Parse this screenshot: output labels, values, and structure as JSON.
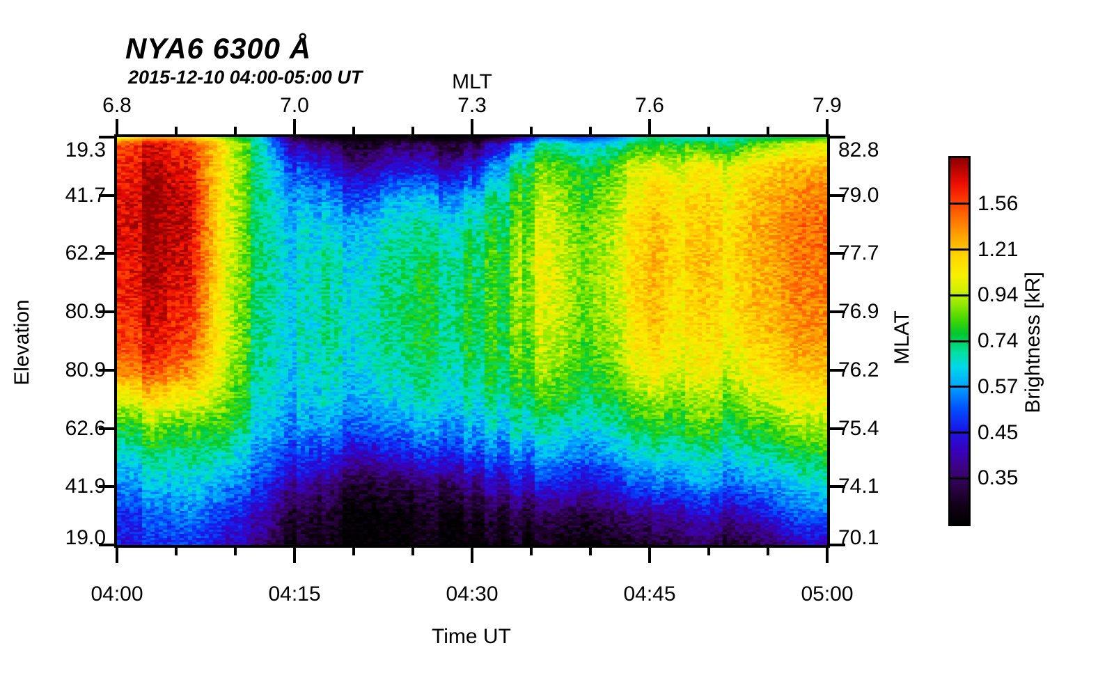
{
  "title": {
    "text": "NYA6 6300 Å",
    "subtitle": "2015-12-10 04:00-05:00 UT"
  },
  "chart_data": {
    "type": "heatmap",
    "title": "NYA6 6300 Å",
    "subtitle": "2015-12-10 04:00-05:00 UT",
    "x_bottom": {
      "label": "Time UT",
      "tick_labels": [
        "04:00",
        "04:15",
        "04:30",
        "04:45",
        "05:00"
      ],
      "minor_ticks_per_interval": 2
    },
    "x_top": {
      "label": "MLT",
      "tick_labels": [
        "6.8",
        "7.0",
        "7.3",
        "7.6",
        "7.9"
      ],
      "minor_ticks_per_interval": 2
    },
    "y_left": {
      "label": "Elevation",
      "tick_labels": [
        "19.3",
        "41.7",
        "62.2",
        "80.9",
        "80.9",
        "62.6",
        "41.9",
        "19.0"
      ]
    },
    "y_right": {
      "label": "MLAT",
      "tick_labels": [
        "82.8",
        "79.0",
        "77.7",
        "76.9",
        "76.2",
        "75.4",
        "74.1",
        "70.1"
      ]
    },
    "colorbar": {
      "label": "Brightness [kR]",
      "tick_labels": [
        "1.56",
        "1.21",
        "0.94",
        "0.74",
        "0.57",
        "0.45",
        "0.35"
      ],
      "segments": 8
    },
    "grid": {
      "description": "Normalized brightness 0-1 (0=black/min, 1=dark red/max), 15 elevation rows (top 19.3 N to bottom 19.0 S) x 21 time samples (04:00 to 05:00 every 3 min)",
      "cols": 21,
      "rows": 15,
      "time_samples": [
        "04:00",
        "04:03",
        "04:06",
        "04:09",
        "04:12",
        "04:15",
        "04:18",
        "04:21",
        "04:24",
        "04:27",
        "04:30",
        "04:33",
        "04:36",
        "04:39",
        "04:42",
        "04:45",
        "04:48",
        "04:51",
        "04:54",
        "04:57",
        "05:00"
      ],
      "values": [
        [
          0.88,
          0.92,
          0.88,
          0.7,
          0.48,
          0.15,
          0.08,
          0.05,
          0.1,
          0.06,
          0.06,
          0.2,
          0.45,
          0.4,
          0.42,
          0.5,
          0.48,
          0.45,
          0.55,
          0.62,
          0.66
        ],
        [
          0.93,
          0.96,
          0.94,
          0.69,
          0.5,
          0.3,
          0.22,
          0.18,
          0.25,
          0.2,
          0.24,
          0.42,
          0.6,
          0.54,
          0.58,
          0.68,
          0.64,
          0.66,
          0.74,
          0.78,
          0.8
        ],
        [
          0.95,
          0.98,
          0.97,
          0.68,
          0.5,
          0.38,
          0.33,
          0.32,
          0.4,
          0.36,
          0.4,
          0.5,
          0.64,
          0.58,
          0.62,
          0.73,
          0.68,
          0.7,
          0.78,
          0.82,
          0.85
        ],
        [
          0.96,
          0.98,
          0.97,
          0.68,
          0.5,
          0.41,
          0.4,
          0.42,
          0.47,
          0.45,
          0.48,
          0.53,
          0.66,
          0.6,
          0.64,
          0.76,
          0.7,
          0.72,
          0.8,
          0.84,
          0.87
        ],
        [
          0.95,
          0.97,
          0.96,
          0.67,
          0.5,
          0.42,
          0.43,
          0.45,
          0.49,
          0.48,
          0.51,
          0.55,
          0.68,
          0.62,
          0.65,
          0.77,
          0.71,
          0.73,
          0.8,
          0.84,
          0.87
        ],
        [
          0.94,
          0.96,
          0.94,
          0.67,
          0.5,
          0.43,
          0.45,
          0.47,
          0.5,
          0.5,
          0.52,
          0.55,
          0.68,
          0.62,
          0.65,
          0.77,
          0.7,
          0.72,
          0.79,
          0.83,
          0.86
        ],
        [
          0.92,
          0.94,
          0.92,
          0.66,
          0.49,
          0.43,
          0.45,
          0.47,
          0.51,
          0.5,
          0.52,
          0.55,
          0.67,
          0.61,
          0.64,
          0.76,
          0.69,
          0.71,
          0.78,
          0.82,
          0.85
        ],
        [
          0.9,
          0.92,
          0.89,
          0.66,
          0.49,
          0.43,
          0.45,
          0.47,
          0.5,
          0.5,
          0.52,
          0.54,
          0.65,
          0.6,
          0.62,
          0.74,
          0.67,
          0.69,
          0.76,
          0.8,
          0.83
        ],
        [
          0.85,
          0.86,
          0.82,
          0.64,
          0.48,
          0.42,
          0.44,
          0.45,
          0.48,
          0.48,
          0.5,
          0.52,
          0.62,
          0.57,
          0.59,
          0.7,
          0.64,
          0.66,
          0.72,
          0.76,
          0.78
        ],
        [
          0.68,
          0.7,
          0.68,
          0.6,
          0.46,
          0.4,
          0.41,
          0.42,
          0.44,
          0.44,
          0.46,
          0.48,
          0.56,
          0.52,
          0.54,
          0.62,
          0.58,
          0.6,
          0.65,
          0.69,
          0.72
        ],
        [
          0.55,
          0.56,
          0.56,
          0.54,
          0.43,
          0.36,
          0.35,
          0.34,
          0.36,
          0.37,
          0.4,
          0.42,
          0.48,
          0.45,
          0.47,
          0.54,
          0.51,
          0.53,
          0.57,
          0.61,
          0.64
        ],
        [
          0.45,
          0.46,
          0.48,
          0.45,
          0.37,
          0.28,
          0.25,
          0.22,
          0.24,
          0.26,
          0.3,
          0.32,
          0.38,
          0.36,
          0.38,
          0.44,
          0.42,
          0.44,
          0.48,
          0.52,
          0.55
        ],
        [
          0.38,
          0.38,
          0.42,
          0.36,
          0.3,
          0.18,
          0.12,
          0.09,
          0.1,
          0.12,
          0.16,
          0.2,
          0.26,
          0.24,
          0.27,
          0.33,
          0.32,
          0.34,
          0.38,
          0.42,
          0.45
        ],
        [
          0.3,
          0.3,
          0.36,
          0.28,
          0.22,
          0.08,
          0.04,
          0.03,
          0.03,
          0.04,
          0.06,
          0.08,
          0.12,
          0.11,
          0.13,
          0.18,
          0.18,
          0.2,
          0.25,
          0.33,
          0.36
        ],
        [
          0.27,
          0.26,
          0.3,
          0.22,
          0.15,
          0.04,
          0.02,
          0.02,
          0.02,
          0.02,
          0.02,
          0.03,
          0.04,
          0.04,
          0.05,
          0.07,
          0.08,
          0.09,
          0.12,
          0.2,
          0.25
        ]
      ],
      "top_edge_strip": [
        0.68,
        0.8,
        0.78,
        0.6,
        0.45,
        0.1,
        0.03,
        0.02,
        0.04,
        0.02,
        0.03,
        0.1,
        0.35,
        0.3,
        0.35,
        0.5,
        0.45,
        0.45,
        0.5,
        0.52,
        0.55
      ]
    },
    "colormap_stops": [
      [
        0.0,
        "#000000"
      ],
      [
        0.05,
        "#120016"
      ],
      [
        0.1,
        "#2a0245"
      ],
      [
        0.15,
        "#3d037c"
      ],
      [
        0.2,
        "#3a00bb"
      ],
      [
        0.26,
        "#1818e8"
      ],
      [
        0.32,
        "#0055ff"
      ],
      [
        0.38,
        "#00a8ff"
      ],
      [
        0.43,
        "#00d8e8"
      ],
      [
        0.47,
        "#00e0a0"
      ],
      [
        0.52,
        "#00c830"
      ],
      [
        0.56,
        "#44d800"
      ],
      [
        0.6,
        "#90e800"
      ],
      [
        0.64,
        "#d0f000"
      ],
      [
        0.68,
        "#f8f000"
      ],
      [
        0.73,
        "#ffd800"
      ],
      [
        0.78,
        "#ffab00"
      ],
      [
        0.83,
        "#ff7800"
      ],
      [
        0.88,
        "#ff4000"
      ],
      [
        0.93,
        "#ee0e00"
      ],
      [
        1.0,
        "#8e0000"
      ]
    ]
  }
}
